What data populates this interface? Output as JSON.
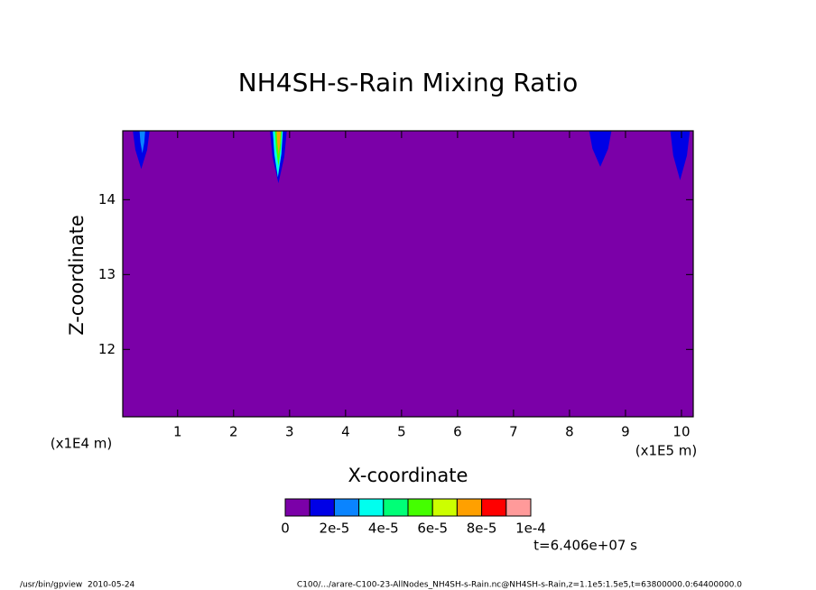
{
  "chart_data": {
    "type": "contour",
    "title": "NH4SH-s-Rain Mixing Ratio",
    "x_label": "X-coordinate",
    "y_label": "Z-coordinate",
    "x_unit": "(x1E5 m)",
    "y_unit": "(x1E4 m)",
    "xlim": [
      0.02,
      10.21
    ],
    "ylim": [
      11.1,
      14.92
    ],
    "xticks": [
      1,
      2,
      3,
      4,
      5,
      6,
      7,
      8,
      9,
      10
    ],
    "yticks": [
      12,
      13,
      14
    ],
    "features": [
      {
        "x": [
          0.2,
          0.5
        ],
        "zmin": 14.41,
        "value": 1.5e-05
      },
      {
        "x": [
          0.32,
          0.42
        ],
        "zmin": 14.62,
        "value": 2.5e-05
      },
      {
        "x": [
          2.65,
          2.95
        ],
        "zmin": 14.22,
        "value": 1.5e-05
      },
      {
        "x": [
          2.7,
          2.88
        ],
        "zmin": 14.3,
        "value": 3.5e-05
      },
      {
        "x": [
          2.74,
          2.86
        ],
        "zmin": 14.45,
        "value": 5.5e-05
      },
      {
        "x": [
          2.77,
          2.84
        ],
        "zmin": 14.6,
        "value": 7.5e-05
      },
      {
        "x": [
          8.35,
          8.75
        ],
        "zmin": 14.44,
        "value": 1.5e-05
      },
      {
        "x": [
          9.8,
          10.15
        ],
        "zmin": 14.26,
        "value": 1.5e-05
      }
    ],
    "colorbar": {
      "levels": [
        0,
        1e-05,
        2e-05,
        3e-05,
        4e-05,
        5e-05,
        6e-05,
        7e-05,
        8e-05,
        9e-05,
        0.0001
      ],
      "colors": [
        "#7b00a8",
        "#0000e6",
        "#0a84ff",
        "#00ffee",
        "#00ff77",
        "#44ff00",
        "#ccff00",
        "#ffa000",
        "#ff0000",
        "#ff9a9a"
      ],
      "ticks": [
        0,
        {
          "value": 2e-05,
          "label": "2e-5"
        },
        {
          "value": 4e-05,
          "label": "4e-5"
        },
        {
          "value": 6e-05,
          "label": "6e-5"
        },
        {
          "value": 8e-05,
          "label": "8e-5"
        },
        {
          "value": 0.0001,
          "label": "1e-4"
        }
      ]
    },
    "time_label": "t=6.406e+07 s",
    "footer_left": "/usr/bin/gpview  2010-05-24",
    "footer_right": "C100/.../arare-C100-23-AllNodes_NH4SH-s-Rain.nc@NH4SH-s-Rain,z=1.1e5:1.5e5,t=63800000.0:64400000.0"
  }
}
